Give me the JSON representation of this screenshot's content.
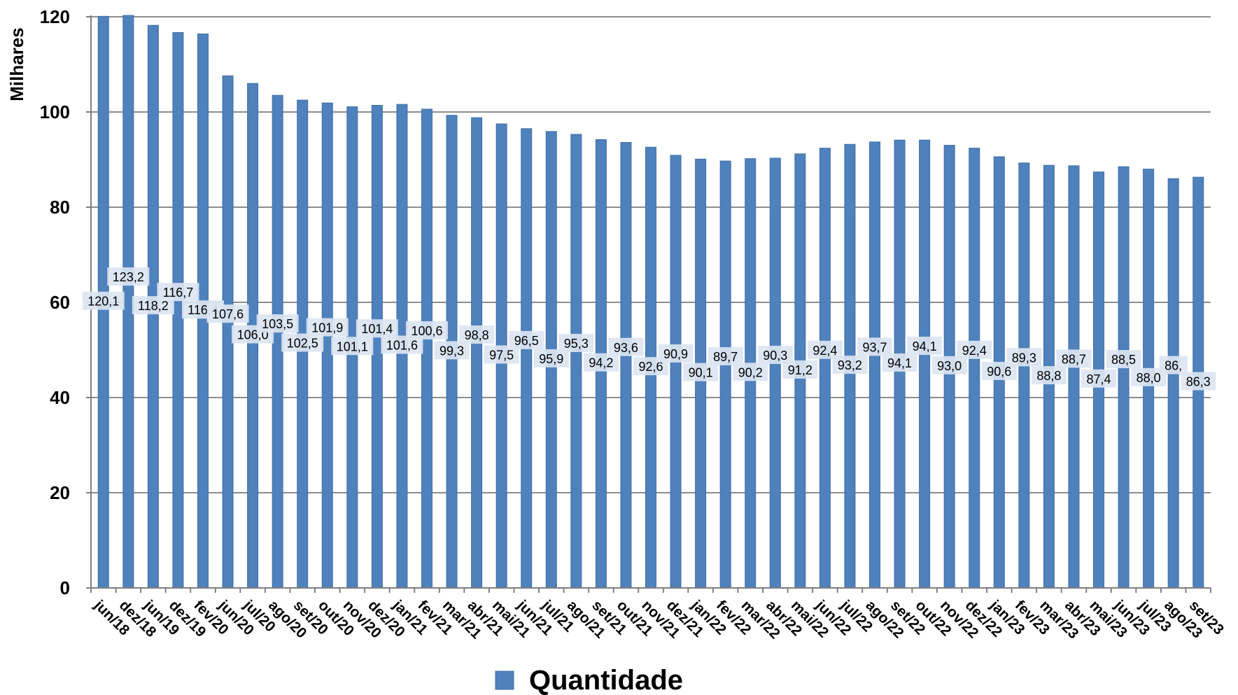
{
  "chart_data": {
    "type": "bar",
    "ylabel": "Milhares",
    "ylim": [
      0,
      120
    ],
    "yticks": [
      "0",
      "20",
      "40",
      "60",
      "80",
      "100",
      "120"
    ],
    "grid": true,
    "legend_position": "bottom",
    "categories": [
      "jun/18",
      "dez/18",
      "jun/19",
      "dez/19",
      "fev/20",
      "jun/20",
      "jul/20",
      "ago/20",
      "set/20",
      "out/20",
      "nov/20",
      "dez/20",
      "jan/21",
      "fev/21",
      "mar/21",
      "abr/21",
      "mai/21",
      "jun/21",
      "jul/21",
      "ago/21",
      "set/21",
      "out/21",
      "nov/21",
      "dez/21",
      "jan/22",
      "fev/22",
      "mar/22",
      "abr/22",
      "mai/22",
      "jun/22",
      "jul/22",
      "ago/22",
      "set/22",
      "out/22",
      "nov/22",
      "dez/22",
      "jan/23",
      "fev/23",
      "mar/23",
      "abr/23",
      "mai/23",
      "jun/23",
      "jul/23",
      "ago/23",
      "set/23"
    ],
    "series": [
      {
        "name": "Quantidade",
        "color": "#4f81bd",
        "values": [
          120.1,
          123.2,
          118.2,
          116.7,
          116.4,
          107.6,
          106.0,
          103.5,
          102.5,
          101.9,
          101.1,
          101.4,
          101.6,
          100.6,
          99.3,
          98.8,
          97.5,
          96.5,
          95.9,
          95.3,
          94.2,
          93.6,
          92.6,
          90.9,
          90.1,
          89.7,
          90.2,
          90.3,
          91.2,
          92.4,
          93.2,
          93.7,
          94.1,
          94.1,
          93.0,
          92.4,
          90.6,
          89.3,
          88.8,
          88.7,
          87.4,
          88.5,
          88.0,
          86.0,
          86.3
        ],
        "labels": [
          "120,1",
          "123,2",
          "118,2",
          "116,7",
          "116,4",
          "107,6",
          "106,0",
          "103,5",
          "102,5",
          "101,9",
          "101,1",
          "101,4",
          "101,6",
          "100,6",
          "99,3",
          "98,8",
          "97,5",
          "96,5",
          "95,9",
          "95,3",
          "94,2",
          "93,6",
          "92,6",
          "90,9",
          "90,1",
          "89,7",
          "90,2",
          "90,3",
          "91,2",
          "92,4",
          "93,2",
          "93,7",
          "94,1",
          "94,1",
          "93,0",
          "92,4",
          "90,6",
          "89,3",
          "88,8",
          "88,7",
          "87,4",
          "88,5",
          "88,0",
          "86,",
          "86,3"
        ]
      }
    ]
  }
}
